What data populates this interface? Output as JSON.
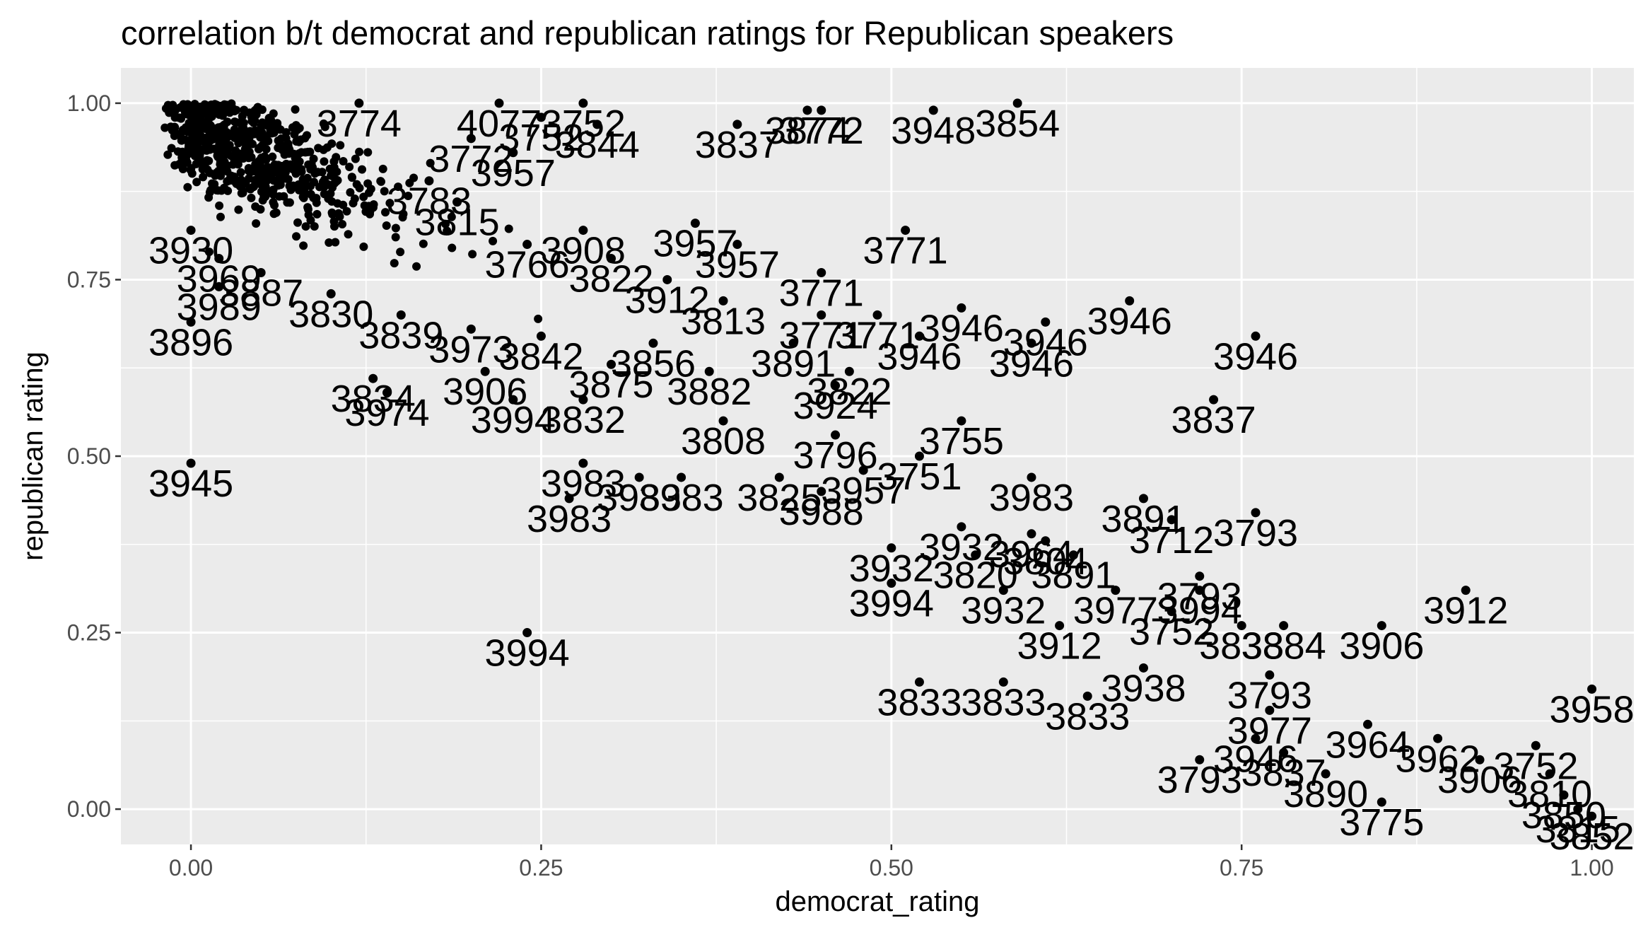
{
  "chart_data": {
    "type": "scatter",
    "title": "correlation b/t democrat and republican ratings for Republican speakers",
    "xlabel": "democrat_rating",
    "ylabel": "republican rating",
    "xlim": [
      -0.05,
      1.03
    ],
    "ylim": [
      -0.05,
      1.05
    ],
    "xticks": [
      0.0,
      0.25,
      0.5,
      0.75,
      1.0
    ],
    "xtick_labels": [
      "0.00",
      "0.25",
      "0.50",
      "0.75",
      "1.00"
    ],
    "yticks": [
      0.0,
      0.25,
      0.5,
      0.75,
      1.0
    ],
    "ytick_labels": [
      "0.00",
      "0.25",
      "0.50",
      "0.75",
      "1.00"
    ],
    "grid": true,
    "legend": "none",
    "colors": {
      "panel": "#ebebeb",
      "grid": "#ffffff",
      "point": "#000000",
      "text": "#000000",
      "tick_text": "#4d4d4d",
      "tick_mark": "#333333"
    },
    "points": [
      {
        "x": 0.0,
        "y": 0.49,
        "label": "3945"
      },
      {
        "x": 0.0,
        "y": 0.69,
        "label": "3896"
      },
      {
        "x": 0.02,
        "y": 0.74,
        "label": "3989"
      },
      {
        "x": 0.24,
        "y": 0.25,
        "label": "3994"
      },
      {
        "x": 0.23,
        "y": 0.58,
        "label": "3994"
      },
      {
        "x": 0.14,
        "y": 0.59,
        "label": "3974"
      },
      {
        "x": 0.13,
        "y": 0.61,
        "label": "3834"
      },
      {
        "x": 0.36,
        "y": 0.83,
        "label": "3957"
      },
      {
        "x": 0.39,
        "y": 0.8,
        "label": "3957"
      },
      {
        "x": 0.23,
        "y": 0.93,
        "label": "3957"
      },
      {
        "x": 0.39,
        "y": 0.97,
        "label": "3837"
      },
      {
        "x": 0.29,
        "y": 0.97,
        "label": "3844"
      },
      {
        "x": 0.44,
        "y": 0.99,
        "label": "3874"
      },
      {
        "x": 0.45,
        "y": 0.99,
        "label": "3772"
      },
      {
        "x": 0.53,
        "y": 0.99,
        "label": "3948"
      },
      {
        "x": 0.59,
        "y": 1.0,
        "label": "3854"
      },
      {
        "x": 0.51,
        "y": 0.82,
        "label": "3771"
      },
      {
        "x": 0.45,
        "y": 0.76,
        "label": "3771"
      },
      {
        "x": 0.49,
        "y": 0.7,
        "label": "3771"
      },
      {
        "x": 0.45,
        "y": 0.7,
        "label": "3771"
      },
      {
        "x": 0.55,
        "y": 0.71,
        "label": "3946"
      },
      {
        "x": 0.52,
        "y": 0.67,
        "label": "3946"
      },
      {
        "x": 0.61,
        "y": 0.69,
        "label": "3946"
      },
      {
        "x": 0.6,
        "y": 0.66,
        "label": "3946"
      },
      {
        "x": 0.67,
        "y": 0.72,
        "label": "3946"
      },
      {
        "x": 0.76,
        "y": 0.67,
        "label": "3946"
      },
      {
        "x": 0.73,
        "y": 0.58,
        "label": "3837"
      },
      {
        "x": 0.55,
        "y": 0.55,
        "label": "3755"
      },
      {
        "x": 0.43,
        "y": 0.66,
        "label": "3891"
      },
      {
        "x": 0.47,
        "y": 0.62,
        "label": "3822"
      },
      {
        "x": 0.46,
        "y": 0.6,
        "label": "3924"
      },
      {
        "x": 0.46,
        "y": 0.53,
        "label": "3796"
      },
      {
        "x": 0.52,
        "y": 0.5,
        "label": "3751"
      },
      {
        "x": 0.48,
        "y": 0.48,
        "label": "3957"
      },
      {
        "x": 0.45,
        "y": 0.45,
        "label": "3988"
      },
      {
        "x": 0.28,
        "y": 0.49,
        "label": "3983"
      },
      {
        "x": 0.32,
        "y": 0.47,
        "label": "3983"
      },
      {
        "x": 0.35,
        "y": 0.47,
        "label": "3983"
      },
      {
        "x": 0.27,
        "y": 0.44,
        "label": "3983"
      },
      {
        "x": 0.6,
        "y": 0.47,
        "label": "3983"
      },
      {
        "x": 0.68,
        "y": 0.44,
        "label": "3891"
      },
      {
        "x": 0.7,
        "y": 0.41,
        "label": "3712"
      },
      {
        "x": 0.76,
        "y": 0.42,
        "label": "3793"
      },
      {
        "x": 0.72,
        "y": 0.33,
        "label": "3793"
      },
      {
        "x": 0.6,
        "y": 0.39,
        "label": "3964"
      },
      {
        "x": 0.61,
        "y": 0.38,
        "label": "3804"
      },
      {
        "x": 0.55,
        "y": 0.4,
        "label": "3932"
      },
      {
        "x": 0.5,
        "y": 0.37,
        "label": "3932"
      },
      {
        "x": 0.56,
        "y": 0.36,
        "label": "3820"
      },
      {
        "x": 0.63,
        "y": 0.36,
        "label": "3891"
      },
      {
        "x": 0.5,
        "y": 0.32,
        "label": "3994"
      },
      {
        "x": 0.58,
        "y": 0.31,
        "label": "3932"
      },
      {
        "x": 0.66,
        "y": 0.31,
        "label": "3977"
      },
      {
        "x": 0.72,
        "y": 0.31,
        "label": "3994"
      },
      {
        "x": 0.7,
        "y": 0.28,
        "label": "3752"
      },
      {
        "x": 0.62,
        "y": 0.26,
        "label": "3912"
      },
      {
        "x": 0.91,
        "y": 0.31,
        "label": "3912"
      },
      {
        "x": 0.75,
        "y": 0.26,
        "label": "3833"
      },
      {
        "x": 0.78,
        "y": 0.26,
        "label": "3884"
      },
      {
        "x": 0.85,
        "y": 0.26,
        "label": "3906"
      },
      {
        "x": 0.52,
        "y": 0.18,
        "label": "3833"
      },
      {
        "x": 0.58,
        "y": 0.18,
        "label": "3833"
      },
      {
        "x": 0.64,
        "y": 0.16,
        "label": "3833"
      },
      {
        "x": 0.68,
        "y": 0.2,
        "label": "3938"
      },
      {
        "x": 0.77,
        "y": 0.19,
        "label": "3793"
      },
      {
        "x": 0.77,
        "y": 0.14,
        "label": "3977"
      },
      {
        "x": 0.84,
        "y": 0.12,
        "label": "3964"
      },
      {
        "x": 0.76,
        "y": 0.1,
        "label": "3946"
      },
      {
        "x": 0.78,
        "y": 0.08,
        "label": "3837"
      },
      {
        "x": 0.72,
        "y": 0.07,
        "label": "3793"
      },
      {
        "x": 0.81,
        "y": 0.05,
        "label": "3890"
      },
      {
        "x": 0.85,
        "y": 0.01,
        "label": "3775"
      },
      {
        "x": 0.89,
        "y": 0.1,
        "label": "3962"
      },
      {
        "x": 0.92,
        "y": 0.07,
        "label": "3906"
      },
      {
        "x": 0.96,
        "y": 0.09,
        "label": "3752"
      },
      {
        "x": 1.0,
        "y": 0.17,
        "label": "3958"
      },
      {
        "x": 0.97,
        "y": 0.05,
        "label": "3810"
      },
      {
        "x": 0.98,
        "y": 0.02,
        "label": "3850"
      },
      {
        "x": 0.99,
        "y": 0.0,
        "label": "3815"
      },
      {
        "x": 1.0,
        "y": -0.01,
        "label": "3852"
      },
      {
        "x": 0.12,
        "y": 1.0,
        "label": "3774"
      },
      {
        "x": 0.22,
        "y": 1.0,
        "label": "4077"
      },
      {
        "x": 0.28,
        "y": 1.0,
        "label": "3752"
      },
      {
        "x": 0.2,
        "y": 0.95,
        "label": "3772"
      },
      {
        "x": 0.25,
        "y": 0.98,
        "label": "3752"
      },
      {
        "x": 0.17,
        "y": 0.89,
        "label": "3783"
      },
      {
        "x": 0.19,
        "y": 0.86,
        "label": "3815"
      },
      {
        "x": 0.28,
        "y": 0.82,
        "label": "3908"
      },
      {
        "x": 0.3,
        "y": 0.78,
        "label": "3822"
      },
      {
        "x": 0.34,
        "y": 0.75,
        "label": "3912"
      },
      {
        "x": 0.24,
        "y": 0.8,
        "label": "3766"
      },
      {
        "x": 0.02,
        "y": 0.78,
        "label": "3969"
      },
      {
        "x": 0.1,
        "y": 0.73,
        "label": "3830"
      },
      {
        "x": 0.15,
        "y": 0.7,
        "label": "3839"
      },
      {
        "x": 0.2,
        "y": 0.68,
        "label": "3973"
      },
      {
        "x": 0.25,
        "y": 0.67,
        "label": "3842"
      },
      {
        "x": 0.33,
        "y": 0.66,
        "label": "3856"
      },
      {
        "x": 0.38,
        "y": 0.72,
        "label": "3813"
      },
      {
        "x": 0.3,
        "y": 0.63,
        "label": "3875"
      },
      {
        "x": 0.37,
        "y": 0.62,
        "label": "3882"
      },
      {
        "x": 0.28,
        "y": 0.58,
        "label": "3832"
      },
      {
        "x": 0.38,
        "y": 0.55,
        "label": "3808"
      },
      {
        "x": 0.21,
        "y": 0.62,
        "label": "3906"
      },
      {
        "x": 0.0,
        "y": 0.82,
        "label": "3930"
      },
      {
        "x": 0.05,
        "y": 0.76,
        "label": "3887"
      },
      {
        "x": 0.42,
        "y": 0.47,
        "label": "3825"
      }
    ]
  }
}
